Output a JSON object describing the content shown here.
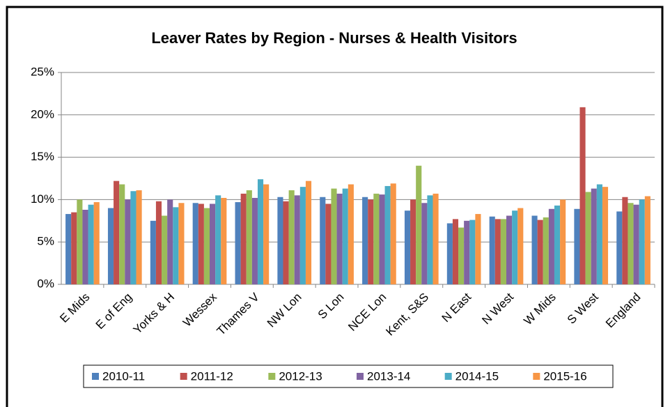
{
  "chart_data": {
    "type": "bar",
    "title": "Leaver Rates by Region - Nurses & Health Visitors",
    "categories": [
      "E Mids",
      "E of Eng",
      "Yorks & H",
      "Wessex",
      "Thames V",
      "NW Lon",
      "S Lon",
      "NCE Lon",
      "Kent, S&S",
      "N East",
      "N West",
      "W Mids",
      "S West",
      "England"
    ],
    "series": [
      {
        "name": "2010-11",
        "color": "#4f81bd",
        "values": [
          8.3,
          9.0,
          7.5,
          9.6,
          9.7,
          10.3,
          10.3,
          10.3,
          8.7,
          7.2,
          8.0,
          8.1,
          8.9,
          8.6
        ]
      },
      {
        "name": "2011-12",
        "color": "#c0504d",
        "values": [
          8.5,
          12.2,
          9.8,
          9.5,
          10.7,
          9.8,
          9.5,
          10.0,
          10.0,
          7.7,
          7.7,
          7.6,
          20.9,
          10.3
        ]
      },
      {
        "name": "2012-13",
        "color": "#9bbb59",
        "values": [
          10.0,
          11.8,
          8.1,
          9.0,
          11.1,
          11.1,
          11.3,
          10.7,
          14.0,
          6.7,
          7.7,
          7.9,
          10.9,
          9.6
        ]
      },
      {
        "name": "2013-14",
        "color": "#8064a2",
        "values": [
          8.8,
          10.0,
          10.0,
          9.5,
          10.2,
          10.5,
          10.7,
          10.6,
          9.6,
          7.5,
          8.1,
          8.9,
          11.3,
          9.4
        ]
      },
      {
        "name": "2014-15",
        "color": "#4bacc6",
        "values": [
          9.4,
          11.0,
          9.1,
          10.5,
          12.4,
          11.5,
          11.3,
          11.6,
          10.5,
          7.6,
          8.7,
          9.3,
          11.8,
          10.0
        ]
      },
      {
        "name": "2015-16",
        "color": "#f79646",
        "values": [
          9.7,
          11.1,
          9.6,
          10.2,
          11.8,
          12.2,
          11.8,
          11.9,
          10.7,
          8.3,
          9.0,
          10.0,
          11.5,
          10.4
        ]
      }
    ],
    "ylim": [
      0,
      25
    ],
    "yticks": [
      {
        "value": 0,
        "label": "0%"
      },
      {
        "value": 5,
        "label": "5%"
      },
      {
        "value": 10,
        "label": "10%"
      },
      {
        "value": 15,
        "label": "15%"
      },
      {
        "value": 20,
        "label": "20%"
      },
      {
        "value": 25,
        "label": "25%"
      }
    ],
    "grid": true,
    "legend": "bottom"
  }
}
